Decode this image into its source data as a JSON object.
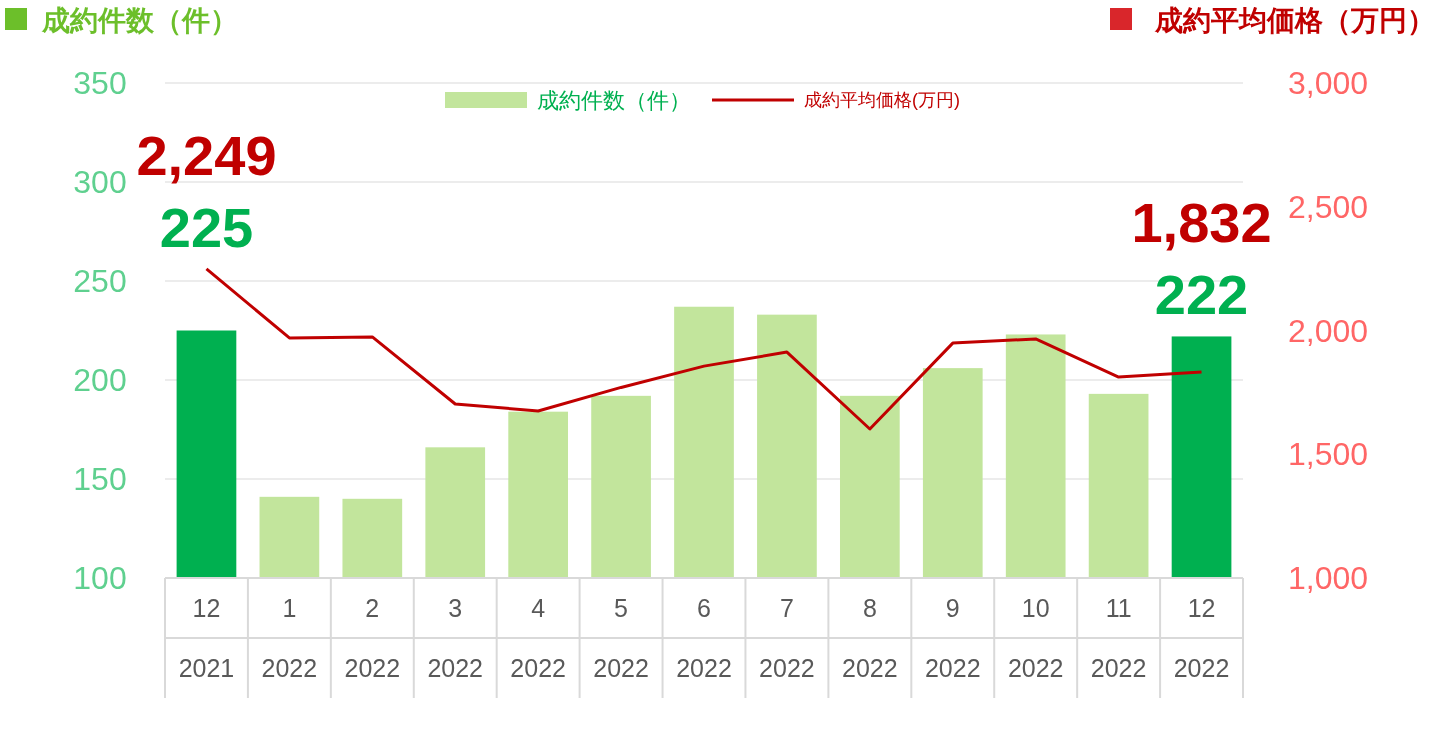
{
  "chart_data": {
    "type": "bar",
    "ylabel": "成約件数（件）",
    "y2label": "成約平均価格（万円）",
    "categories": [
      "12\n2021",
      "1\n2022",
      "2\n2022",
      "3\n2022",
      "4\n2022",
      "5\n2022",
      "6\n2022",
      "7\n2022",
      "8\n2022",
      "9\n2022",
      "10\n2022",
      "11\n2022",
      "12\n2022"
    ],
    "series": [
      {
        "name": "成約件数（件）",
        "color": "#c2e59c",
        "colors": [
          "#00b050",
          "#c2e59c",
          "#c2e59c",
          "#c2e59c",
          "#c2e59c",
          "#c2e59c",
          "#c2e59c",
          "#c2e59c",
          "#c2e59c",
          "#c2e59c",
          "#c2e59c",
          "#c2e59c",
          "#00b050"
        ],
        "values": [
          225,
          141,
          140,
          166,
          184,
          192,
          237,
          233,
          192,
          206,
          223,
          193,
          222
        ],
        "value_labels": [
          "225",
          null,
          null,
          null,
          null,
          null,
          null,
          null,
          null,
          null,
          null,
          null,
          "222"
        ]
      },
      {
        "name": "成約平均価格(万円)",
        "type": "line",
        "axis": "y2",
        "color": "#c00000",
        "values": [
          2249,
          1970,
          1974,
          1703,
          1675,
          1770,
          1856,
          1913,
          1602,
          1949,
          1966,
          1812,
          1832
        ],
        "value_labels": [
          "2,249",
          null,
          null,
          null,
          null,
          null,
          null,
          null,
          null,
          null,
          null,
          null,
          "1,832"
        ]
      }
    ],
    "ylim": [
      100,
      350
    ],
    "yticks": [
      100,
      150,
      200,
      250,
      300,
      350
    ],
    "y2lim": [
      1000,
      3000
    ],
    "y2ticks": [
      {
        "value": 1000,
        "label": "1,000"
      },
      {
        "value": 1500,
        "label": "1,500"
      },
      {
        "value": 2000,
        "label": "2,000"
      },
      {
        "value": 2500,
        "label": "2,500"
      },
      {
        "value": 3000,
        "label": "3,000"
      }
    ],
    "grid": "y",
    "legend": "top"
  }
}
